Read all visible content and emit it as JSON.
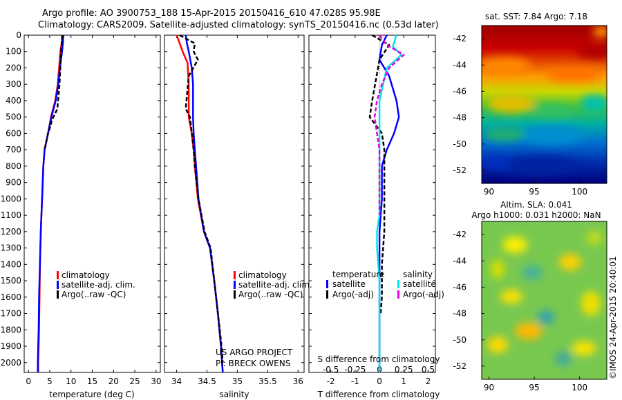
{
  "header": {
    "line1": "Argo profile: AO 3900753_188 15-Apr-2015 20150416_610 47.028S 95.98E",
    "line2": "Climatology: CARS2009. Satellite-adjusted climatology: synTS_20150416.nc (0.53d later)"
  },
  "colors": {
    "climatology": "#ff0000",
    "satellite": "#0000ff",
    "argo": "#000000",
    "sal_satellite": "#00e5e5",
    "sal_argo": "#e600e6"
  },
  "chart_data": [
    {
      "type": "line",
      "panel": "temperature",
      "xlabel": "temperature (deg C)",
      "ylabel": "",
      "xlim": [
        -1,
        31
      ],
      "ylim": [
        2060,
        0
      ],
      "xticks": [
        "0",
        "5",
        "10",
        "15",
        "20",
        "25",
        "30"
      ],
      "yticks": [
        "0",
        "100",
        "200",
        "300",
        "400",
        "500",
        "600",
        "700",
        "800",
        "900",
        "1000",
        "1100",
        "1200",
        "1300",
        "1400",
        "1500",
        "1600",
        "1700",
        "1800",
        "1900",
        "2000"
      ],
      "legend": [
        "climatology",
        "satellite-adj. clim.",
        "Argo(..raw -QC)"
      ],
      "series": [
        {
          "name": "climatology",
          "x": [
            7.9,
            7.8,
            7.5,
            7.2,
            6.9,
            6.3,
            5.3,
            4.6,
            3.8,
            3.5,
            3.2,
            2.9,
            2.7,
            2.6,
            2.5,
            2.4,
            2.3,
            2.3
          ],
          "y": [
            0,
            50,
            100,
            200,
            300,
            400,
            500,
            600,
            700,
            800,
            1000,
            1200,
            1400,
            1600,
            1800,
            1900,
            2000,
            2060
          ]
        },
        {
          "name": "satellite-adj. clim.",
          "x": [
            8.2,
            8.1,
            7.9,
            7.4,
            7.0,
            6.4,
            5.4,
            4.6,
            3.8,
            3.5,
            3.2,
            2.9,
            2.7,
            2.5,
            2.4,
            2.3,
            2.2,
            2.2
          ],
          "y": [
            0,
            50,
            100,
            200,
            300,
            400,
            500,
            600,
            700,
            800,
            1000,
            1200,
            1400,
            1600,
            1800,
            1900,
            2000,
            2060
          ]
        },
        {
          "name": "Argo(..raw -QC)",
          "x": [
            8.0,
            7.7,
            7.6,
            7.3,
            6.8,
            5.5,
            5.1,
            4.6,
            3.8
          ],
          "y": [
            0,
            80,
            150,
            300,
            450,
            520,
            560,
            600,
            700
          ]
        }
      ]
    },
    {
      "type": "line",
      "panel": "salinity",
      "xlabel": "salinity",
      "xlim": [
        33.8,
        36.1
      ],
      "ylim": [
        2060,
        0
      ],
      "xticks": [
        "34",
        "34.5",
        "35",
        "35.5",
        "36"
      ],
      "legend": [
        "climatology",
        "satellite-adj. clim.",
        "Argo(..raw -QC)"
      ],
      "annotations": [
        "US ARGO PROJECT",
        "PI: BRECK OWENS"
      ],
      "series": [
        {
          "name": "climatology",
          "x": [
            34.0,
            34.05,
            34.1,
            34.18,
            34.2,
            34.2,
            34.25,
            34.28,
            34.3,
            34.35,
            34.45,
            34.55,
            34.62,
            34.68,
            34.73,
            34.75,
            34.76
          ],
          "y": [
            0,
            50,
            100,
            170,
            300,
            500,
            600,
            700,
            800,
            1000,
            1200,
            1300,
            1500,
            1700,
            1900,
            2000,
            2060
          ]
        },
        {
          "name": "satellite-adj. clim.",
          "x": [
            34.15,
            34.17,
            34.2,
            34.25,
            34.27,
            34.27,
            34.28,
            34.3,
            34.32,
            34.36,
            34.45,
            34.55,
            34.62,
            34.68,
            34.73,
            34.75,
            34.76
          ],
          "y": [
            0,
            50,
            100,
            200,
            300,
            500,
            600,
            700,
            800,
            1000,
            1200,
            1300,
            1500,
            1700,
            1900,
            2000,
            2060
          ]
        },
        {
          "name": "Argo(..raw -QC)",
          "x": [
            34.05,
            34.3,
            34.28,
            34.35,
            34.2,
            34.15,
            34.22,
            34.25,
            34.28,
            34.3,
            34.36,
            34.46,
            34.56,
            34.62,
            34.68,
            34.74,
            34.76
          ],
          "y": [
            0,
            50,
            100,
            150,
            250,
            450,
            500,
            600,
            700,
            800,
            1000,
            1200,
            1300,
            1500,
            1700,
            1900,
            2000
          ]
        }
      ]
    },
    {
      "type": "line",
      "panel": "difference",
      "xlabel": "T difference from climatology",
      "xlabel2": "S difference from climatology",
      "xlim": [
        -2.9,
        2.3
      ],
      "ylim": [
        2060,
        0
      ],
      "xticks": [
        "-2",
        "-1",
        "0",
        "1",
        "2"
      ],
      "xticks2": [
        "-0.5",
        "-0.25",
        "0",
        "0.25",
        "0.5"
      ],
      "legend": [
        "temperature",
        "satellite",
        "Argo(-adj)",
        "salinity",
        "satellite",
        "Argo(-adj)"
      ],
      "series": [
        {
          "name": "temperature satellite",
          "x": [
            0.3,
            0.1,
            0.0,
            0.4,
            0.7,
            0.8,
            0.6,
            0.3,
            0.1,
            0.1,
            0.0,
            0.0,
            0.0,
            0.0,
            0.0,
            0.0
          ],
          "y": [
            0,
            60,
            150,
            250,
            400,
            500,
            600,
            700,
            800,
            1000,
            1200,
            1400,
            1600,
            1800,
            2000,
            2060
          ]
        },
        {
          "name": "temperature Argo(-adj)",
          "x": [
            -0.3,
            0.4,
            0.0,
            -0.3,
            -0.4,
            0.1,
            0.2,
            0.2,
            0.2,
            0.2,
            0.1,
            0.1,
            0.05
          ],
          "y": [
            0,
            60,
            150,
            400,
            500,
            600,
            700,
            800,
            1000,
            1200,
            1400,
            1600,
            1700
          ]
        },
        {
          "name": "salinity satellite",
          "x": [
            0.7,
            0.55,
            0.9,
            0.3,
            0.0,
            0.0,
            0.0,
            0.0,
            0.0,
            -0.1,
            -0.1,
            0.0,
            0.0
          ],
          "y": [
            0,
            70,
            120,
            200,
            400,
            600,
            800,
            1000,
            1100,
            1200,
            1300,
            1500,
            2060
          ]
        },
        {
          "name": "salinity Argo(-adj)",
          "x": [
            0.0,
            0.3,
            1.0,
            0.4,
            0.1,
            -0.1,
            -0.2,
            -0.1,
            0.0,
            0.0,
            0.0
          ],
          "y": [
            0,
            60,
            120,
            200,
            300,
            400,
            500,
            600,
            700,
            900,
            1100
          ]
        }
      ]
    },
    {
      "type": "heatmap",
      "panel": "sst_map",
      "title": "sat. SST: 7.84 Argo: 7.18",
      "xlim": [
        89.2,
        103
      ],
      "ylim": [
        -53,
        -41
      ],
      "xticks": [
        "90",
        "95",
        "100"
      ],
      "yticks": [
        "-42",
        "-44",
        "-46",
        "-48",
        "-50",
        "-52"
      ]
    },
    {
      "type": "heatmap",
      "panel": "sla_map",
      "title": "Altim. SLA: 0.041",
      "subtitle": "Argo h1000: 0.031 h2000: NaN",
      "annotation": "©IMOS 24-Apr-2015 20:40:01",
      "xlim": [
        89.2,
        103
      ],
      "ylim": [
        -53,
        -41
      ],
      "xticks": [
        "90",
        "95",
        "100"
      ],
      "yticks": [
        "-42",
        "-44",
        "-46",
        "-48",
        "-50",
        "-52"
      ]
    }
  ]
}
